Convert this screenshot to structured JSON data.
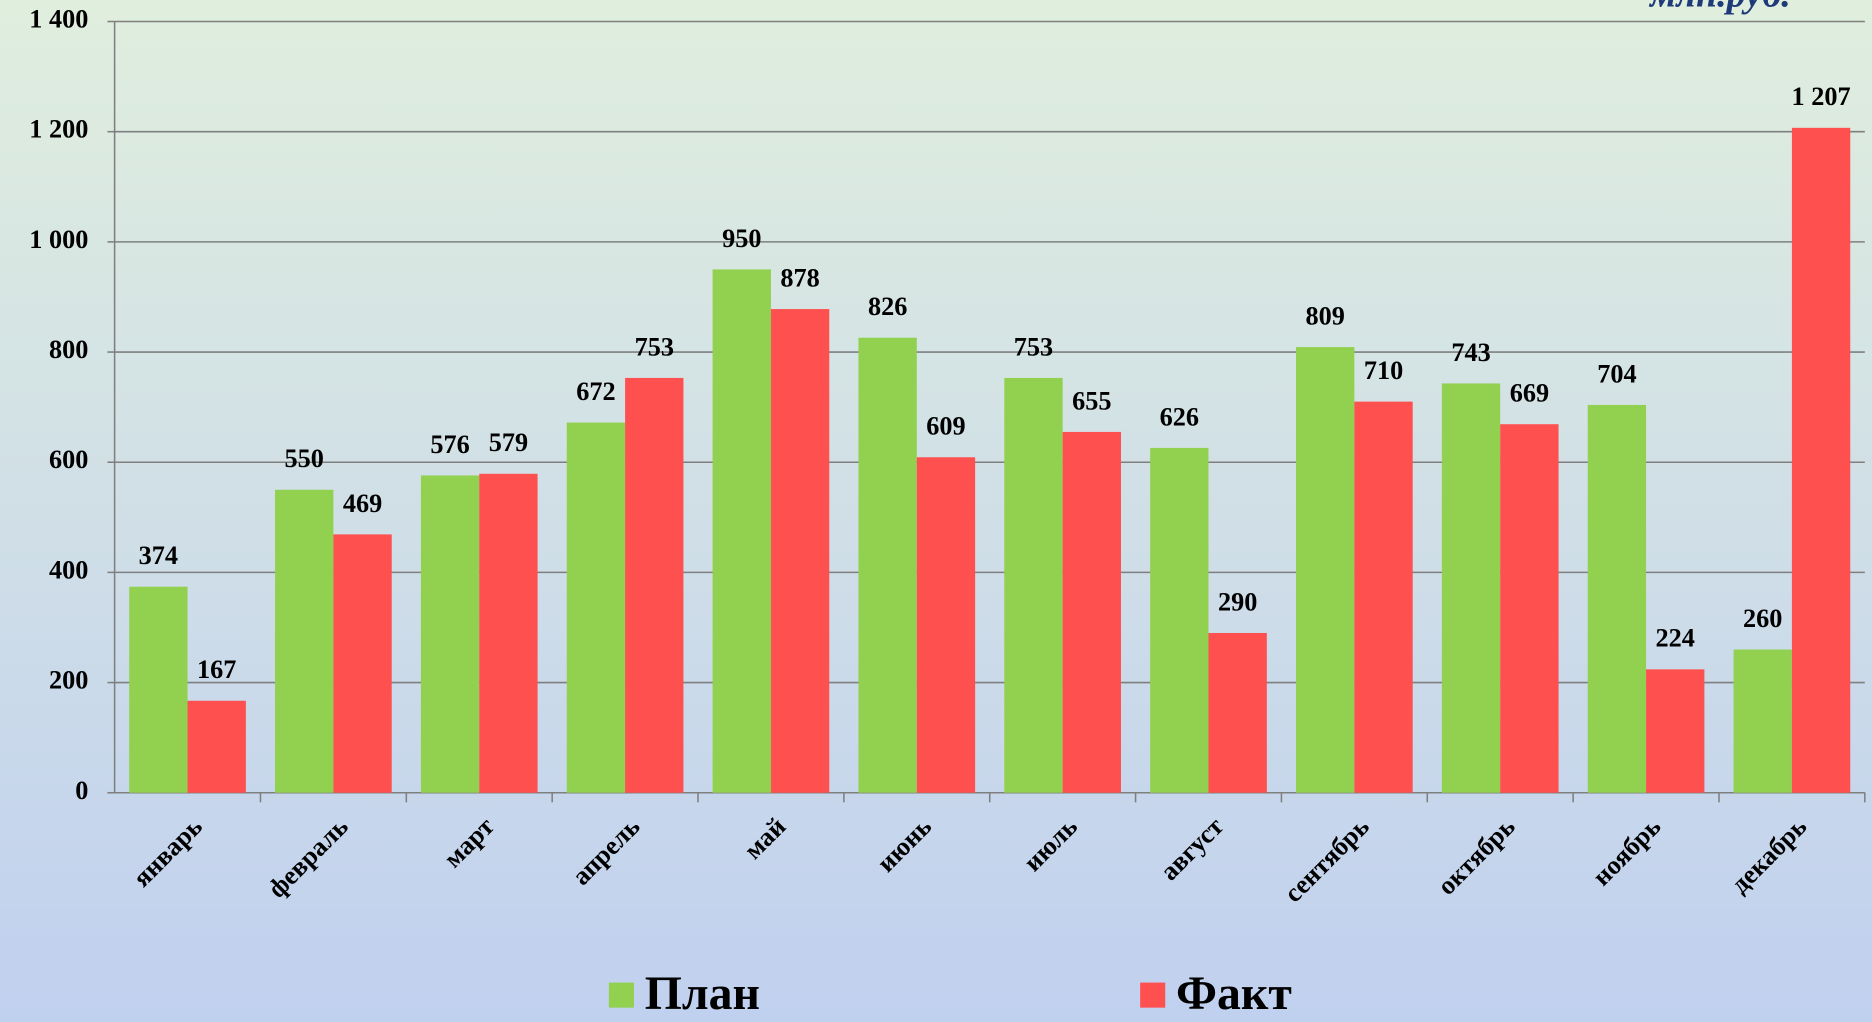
{
  "chart_data": {
    "type": "bar",
    "annotation": "млн.руб.",
    "categories": [
      "январь",
      "февраль",
      "март",
      "апрель",
      "май",
      "июнь",
      "июль",
      "август",
      "сентябрь",
      "октябрь",
      "ноябрь",
      "декабрь"
    ],
    "series": [
      {
        "name": "План",
        "color": "#92d050",
        "values": [
          374,
          550,
          576,
          672,
          950,
          826,
          753,
          626,
          809,
          743,
          704,
          260
        ],
        "value_labels": [
          "374",
          "550",
          "576",
          "672",
          "950",
          "826",
          "753",
          "626",
          "809",
          "743",
          "704",
          "260"
        ]
      },
      {
        "name": "Факт",
        "color": "#ff5050",
        "values": [
          167,
          469,
          579,
          753,
          878,
          609,
          655,
          290,
          710,
          669,
          224,
          1207
        ],
        "value_labels": [
          "167",
          "469",
          "579",
          "753",
          "878",
          "609",
          "655",
          "290",
          "710",
          "669",
          "224",
          "1 207"
        ]
      }
    ],
    "ylim": [
      0,
      1400
    ],
    "yticks": [
      0,
      200,
      400,
      600,
      800,
      {
        "value": 1000,
        "label": "1 000"
      },
      {
        "value": 1200,
        "label": "1 200"
      },
      {
        "value": 1400,
        "label": "1 400"
      }
    ],
    "grid": true,
    "legend": "bottom"
  }
}
